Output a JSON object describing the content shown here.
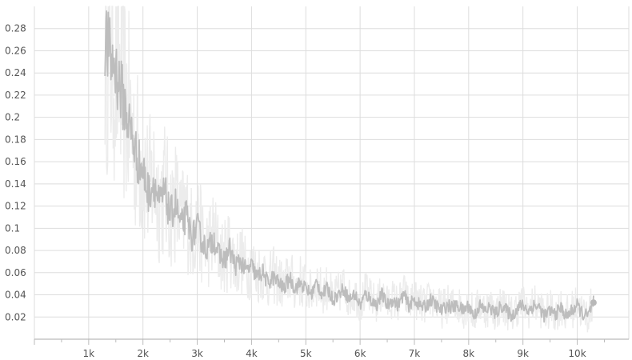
{
  "chart_data": {
    "type": "line",
    "title": "",
    "xlabel": "",
    "ylabel": "",
    "xlim": [
      0,
      10950
    ],
    "ylim": [
      0,
      0.3
    ],
    "x_ticks": [
      1000,
      2000,
      3000,
      4000,
      5000,
      6000,
      7000,
      8000,
      9000,
      10000
    ],
    "x_tick_labels": [
      "1k",
      "2k",
      "3k",
      "4k",
      "5k",
      "6k",
      "7k",
      "8k",
      "9k",
      "10k"
    ],
    "y_ticks": [
      0.02,
      0.04,
      0.06,
      0.08,
      0.1,
      0.12,
      0.14,
      0.16,
      0.18,
      0.2,
      0.22,
      0.24,
      0.26,
      0.28
    ],
    "y_tick_labels": [
      "0.02",
      "0.04",
      "0.06",
      "0.08",
      "0.1",
      "0.12",
      "0.14",
      "0.16",
      "0.18",
      "0.2",
      "0.22",
      "0.24",
      "0.26",
      "0.28"
    ],
    "grid": true,
    "colors": {
      "smoothed": "#bdbdbd",
      "raw": "#ececec",
      "grid": "#dddddd",
      "marker": "#b8b8b8"
    },
    "series": [
      {
        "x": [
          1300,
          1400,
          1500,
          1600,
          1700,
          1800,
          1900,
          2000,
          2100,
          2200,
          2300,
          2400,
          2500,
          2600,
          2700,
          2800,
          2900,
          3000,
          3100,
          3200,
          3300,
          3400,
          3500,
          3600,
          3700,
          3800,
          3900,
          4000,
          4100,
          4200,
          4300,
          4400,
          4500,
          4600,
          4700,
          4800,
          4900,
          5000,
          5100,
          5200,
          5300,
          5400,
          5500,
          5600,
          5700,
          5800,
          5900,
          6000,
          6100,
          6200,
          6300,
          6400,
          6500,
          6600,
          6700,
          6800,
          6900,
          7000,
          7100,
          7200,
          7300,
          7400,
          7500,
          7600,
          7700,
          7800,
          7900,
          8000,
          8100,
          8200,
          8300,
          8400,
          8500,
          8600,
          8700,
          8800,
          8900,
          9000,
          9100,
          9200,
          9300,
          9400,
          9500,
          9600,
          9700,
          9800,
          9900,
          10000,
          10100,
          10200,
          10300
        ],
        "y": [
          0.27,
          0.25,
          0.24,
          0.22,
          0.2,
          0.18,
          0.16,
          0.15,
          0.13,
          0.14,
          0.12,
          0.13,
          0.11,
          0.12,
          0.1,
          0.11,
          0.09,
          0.1,
          0.085,
          0.08,
          0.09,
          0.075,
          0.07,
          0.08,
          0.065,
          0.07,
          0.06,
          0.065,
          0.055,
          0.06,
          0.05,
          0.055,
          0.05,
          0.045,
          0.055,
          0.045,
          0.05,
          0.045,
          0.04,
          0.05,
          0.04,
          0.045,
          0.035,
          0.04,
          0.045,
          0.035,
          0.04,
          0.03,
          0.04,
          0.035,
          0.03,
          0.04,
          0.03,
          0.035,
          0.03,
          0.04,
          0.03,
          0.035,
          0.03,
          0.028,
          0.035,
          0.03,
          0.025,
          0.03,
          0.028,
          0.03,
          0.025,
          0.03,
          0.02,
          0.03,
          0.025,
          0.028,
          0.022,
          0.03,
          0.025,
          0.02,
          0.028,
          0.03,
          0.025,
          0.03,
          0.028,
          0.02,
          0.025,
          0.022,
          0.028,
          0.02,
          0.025,
          0.03,
          0.022,
          0.02,
          0.033
        ]
      }
    ]
  }
}
